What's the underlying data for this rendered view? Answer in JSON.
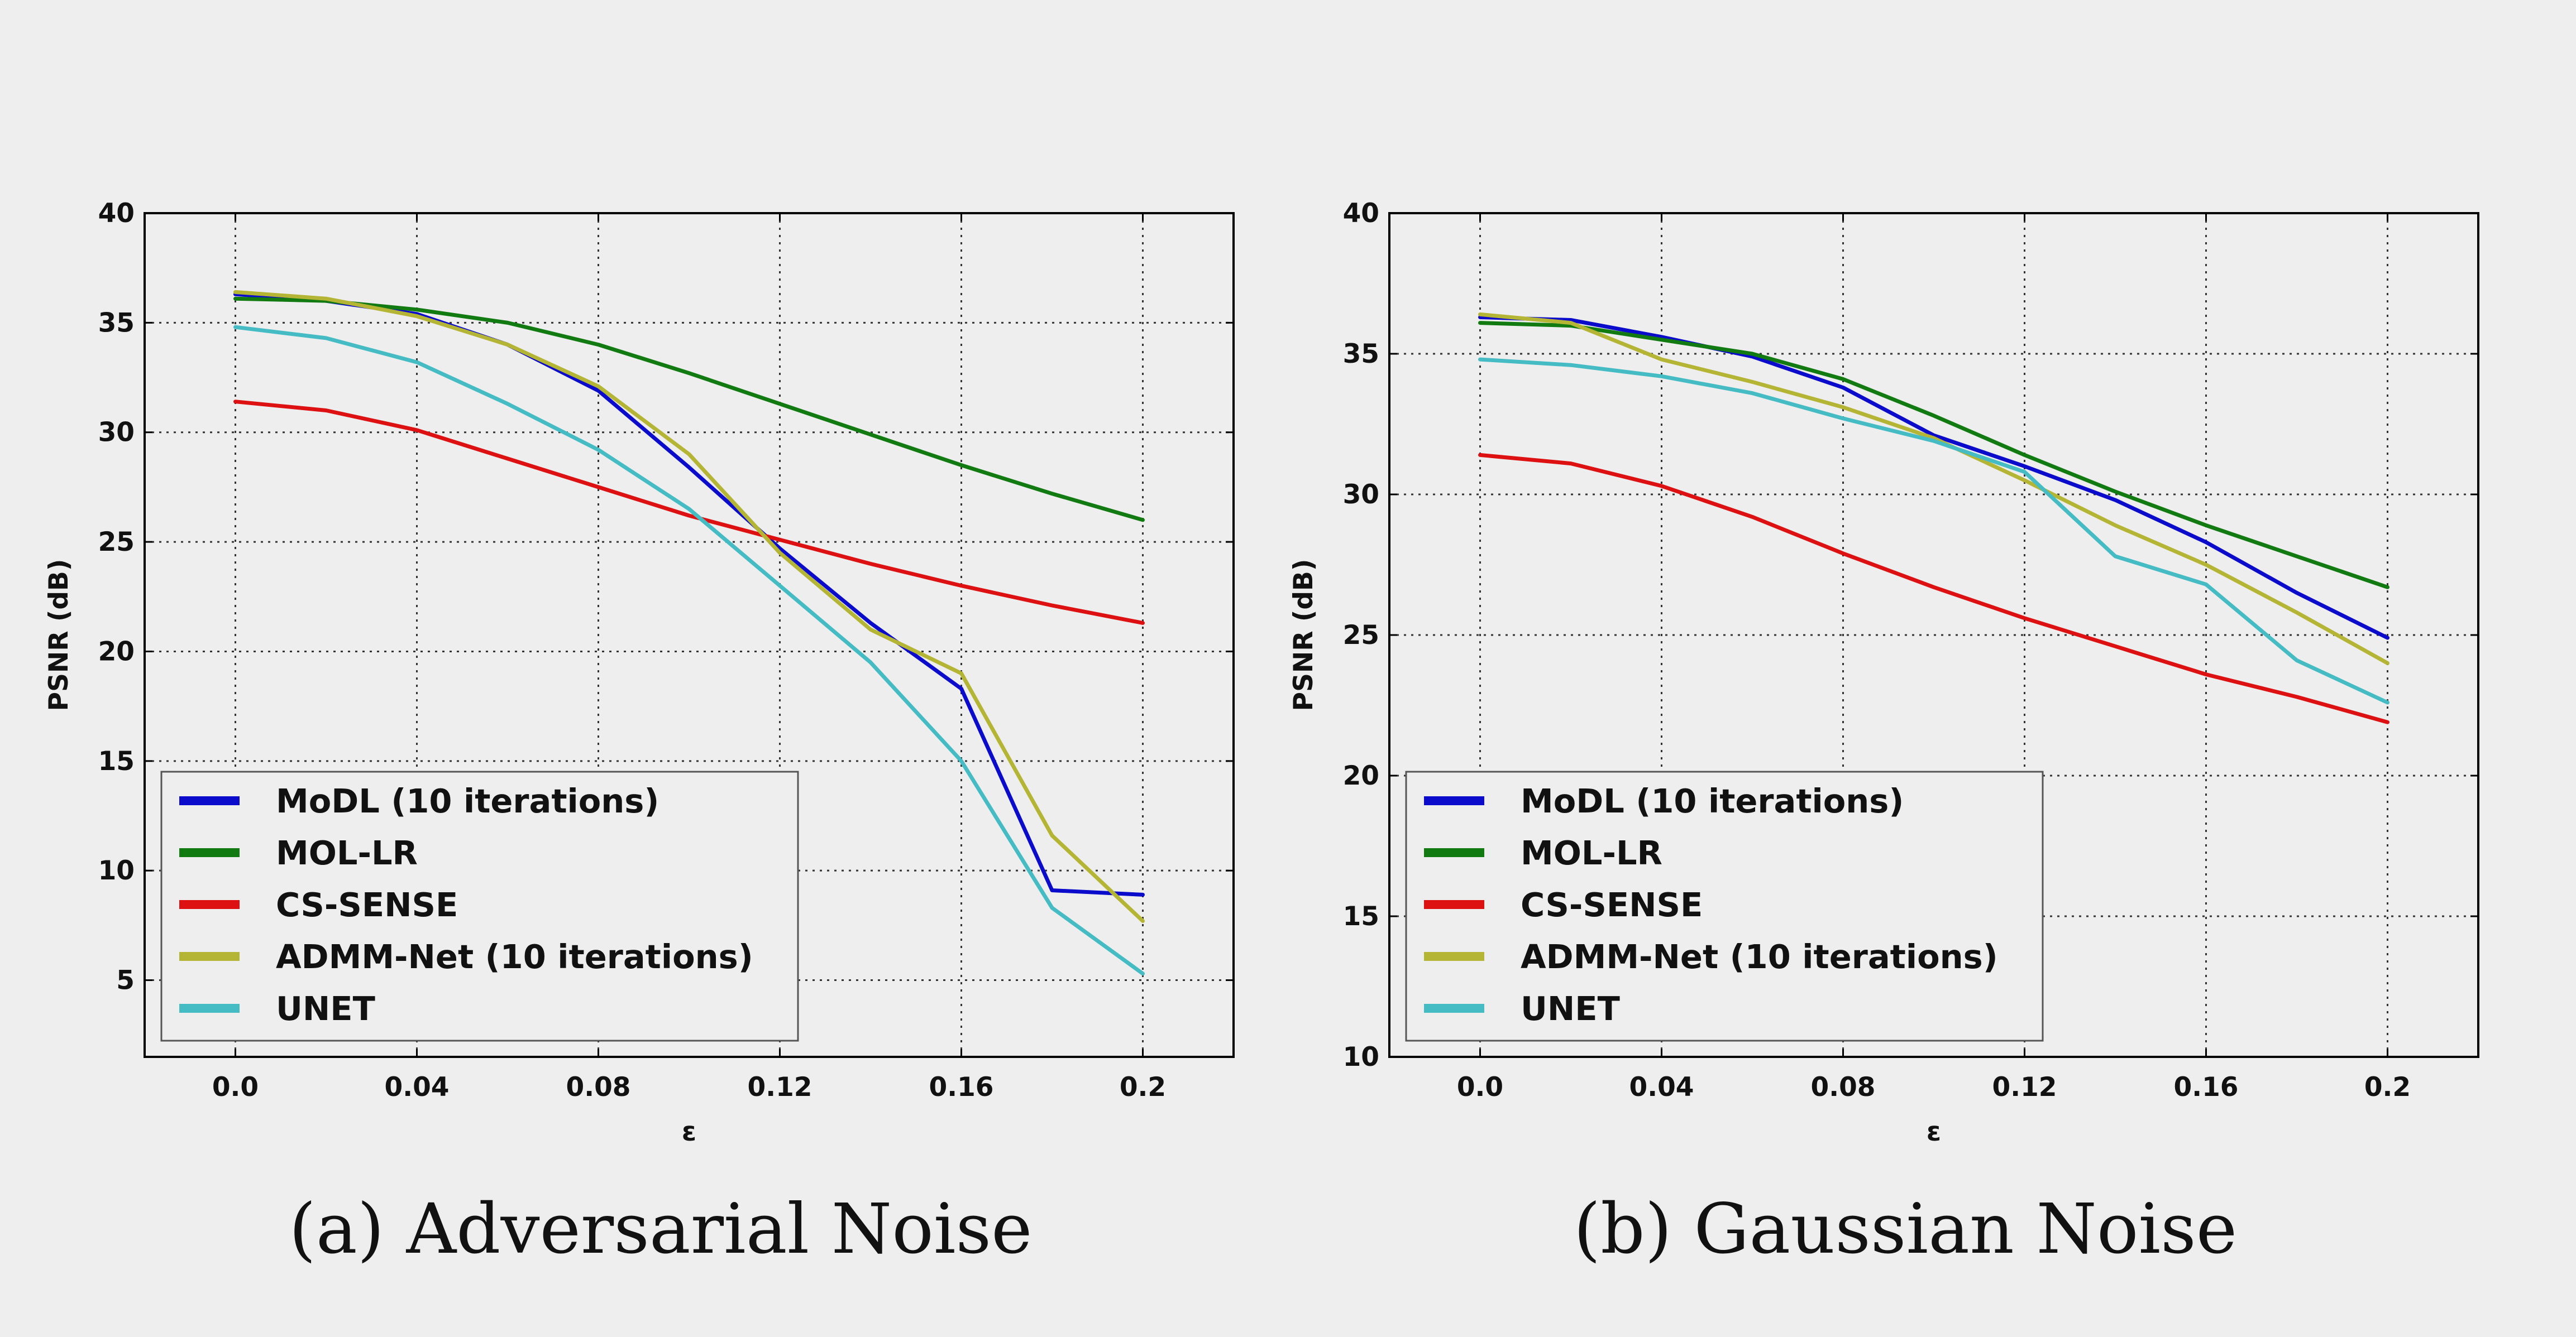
{
  "chart_data": [
    {
      "type": "line",
      "title": "",
      "caption": "(a) Adversarial Noise",
      "xlabel": "ε",
      "ylabel": "PSNR (dB)",
      "xlim": [
        -0.02,
        0.22
      ],
      "ylim": [
        1.5,
        40
      ],
      "xticks": [
        "0.0",
        "0.04",
        "0.08",
        "0.12",
        "0.16",
        "0.2"
      ],
      "xtick_values": [
        0,
        0.04,
        0.08,
        0.12,
        0.16,
        0.2
      ],
      "yticks": [
        5,
        10,
        15,
        20,
        25,
        30,
        35,
        40
      ],
      "grid": true,
      "legend_position": "lower-left",
      "x": [
        0,
        0.02,
        0.04,
        0.06,
        0.08,
        0.1,
        0.12,
        0.14,
        0.16,
        0.18,
        0.2
      ],
      "series": [
        {
          "name": "MoDL (10 iterations)",
          "color": "#0b0bcc",
          "values": [
            36.3,
            36.0,
            35.4,
            34.0,
            31.9,
            28.4,
            24.7,
            21.3,
            18.3,
            9.1,
            8.9
          ]
        },
        {
          "name": "MOL-LR",
          "color": "#117a11",
          "values": [
            36.1,
            36.0,
            35.6,
            35.0,
            34.0,
            32.7,
            31.3,
            29.9,
            28.5,
            27.2,
            26.0
          ]
        },
        {
          "name": "CS-SENSE",
          "color": "#dd1111",
          "values": [
            31.4,
            31.0,
            30.1,
            28.8,
            27.5,
            26.2,
            25.1,
            24.0,
            23.0,
            22.1,
            21.3
          ]
        },
        {
          "name": "ADMM-Net (10 iterations)",
          "color": "#b5b535",
          "values": [
            36.4,
            36.1,
            35.3,
            34.0,
            32.1,
            29.0,
            24.5,
            21.0,
            19.0,
            11.6,
            7.7
          ]
        },
        {
          "name": "UNET",
          "color": "#45bcc4",
          "values": [
            34.8,
            34.3,
            33.2,
            31.3,
            29.2,
            26.5,
            23.0,
            19.5,
            15.0,
            8.3,
            5.3
          ]
        }
      ]
    },
    {
      "type": "line",
      "title": "",
      "caption": "(b) Gaussian Noise",
      "xlabel": "ε",
      "ylabel": "PSNR (dB)",
      "xlim": [
        -0.02,
        0.22
      ],
      "ylim": [
        10,
        40
      ],
      "xticks": [
        "0.0",
        "0.04",
        "0.08",
        "0.12",
        "0.16",
        "0.2"
      ],
      "xtick_values": [
        0,
        0.04,
        0.08,
        0.12,
        0.16,
        0.2
      ],
      "yticks": [
        10,
        15,
        20,
        25,
        30,
        35,
        40
      ],
      "grid": true,
      "legend_position": "lower-left",
      "x": [
        0,
        0.02,
        0.04,
        0.06,
        0.08,
        0.1,
        0.12,
        0.14,
        0.16,
        0.18,
        0.2
      ],
      "series": [
        {
          "name": "MoDL (10 iterations)",
          "color": "#0b0bcc",
          "values": [
            36.3,
            36.2,
            35.6,
            34.9,
            33.8,
            32.1,
            31.0,
            29.8,
            28.3,
            26.5,
            24.9
          ]
        },
        {
          "name": "MOL-LR",
          "color": "#117a11",
          "values": [
            36.1,
            36.0,
            35.5,
            35.0,
            34.1,
            32.8,
            31.4,
            30.1,
            28.9,
            27.8,
            26.7
          ]
        },
        {
          "name": "CS-SENSE",
          "color": "#dd1111",
          "values": [
            31.4,
            31.1,
            30.3,
            29.2,
            27.9,
            26.7,
            25.6,
            24.6,
            23.6,
            22.8,
            21.9
          ]
        },
        {
          "name": "ADMM-Net (10 iterations)",
          "color": "#b5b535",
          "values": [
            36.4,
            36.1,
            34.8,
            34.0,
            33.1,
            32.0,
            30.5,
            28.9,
            27.5,
            25.8,
            24.0
          ]
        },
        {
          "name": "UNET",
          "color": "#45bcc4",
          "values": [
            34.8,
            34.6,
            34.2,
            33.6,
            32.7,
            31.9,
            30.8,
            27.8,
            26.8,
            24.1,
            22.6
          ]
        }
      ]
    }
  ]
}
